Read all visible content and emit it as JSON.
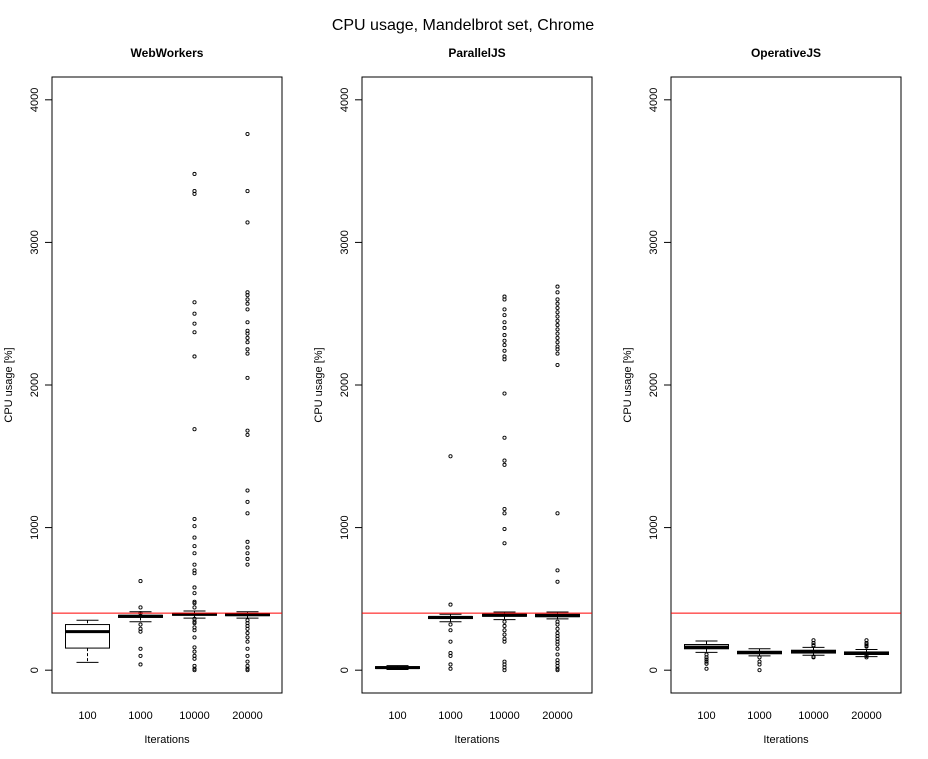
{
  "chart_data": {
    "type": "box",
    "title": "CPU usage, Mandelbrot set, Chrome",
    "reference_line": {
      "y": 400,
      "color": "#ff0000"
    },
    "panels": [
      {
        "title": "WebWorkers",
        "xlabel": "Iterations",
        "ylabel": "CPU usage [%]",
        "ylim": [
          -160,
          4160
        ],
        "yticks": [
          0,
          1000,
          2000,
          3000,
          4000
        ],
        "categories": [
          "100",
          "1000",
          "10000",
          "20000"
        ],
        "boxes": [
          {
            "whisker_low": 55,
            "q1": 155,
            "median": 270,
            "q3": 320,
            "whisker_high": 350,
            "outliers": []
          },
          {
            "whisker_low": 340,
            "q1": 370,
            "median": 378,
            "q3": 385,
            "whisker_high": 410,
            "outliers": [
              625,
              440,
              400,
              320,
              290,
              270,
              150,
              100,
              40
            ]
          },
          {
            "whisker_low": 365,
            "q1": 385,
            "median": 392,
            "q3": 398,
            "whisker_high": 415,
            "outliers": [
              3480,
              3360,
              3340,
              2580,
              2500,
              2430,
              2370,
              2200,
              1690,
              1060,
              1010,
              930,
              870,
              820,
              740,
              700,
              680,
              580,
              540,
              480,
              470,
              440,
              360,
              340,
              330,
              300,
              280,
              230,
              160,
              130,
              100,
              80,
              30,
              10,
              0
            ]
          },
          {
            "whisker_low": 365,
            "q1": 382,
            "median": 390,
            "q3": 396,
            "whisker_high": 410,
            "outliers": [
              3760,
              3360,
              3140,
              2650,
              2630,
              2600,
              2570,
              2530,
              2440,
              2380,
              2360,
              2330,
              2300,
              2250,
              2220,
              2050,
              1680,
              1650,
              1260,
              1180,
              1100,
              900,
              860,
              820,
              780,
              740,
              350,
              330,
              310,
              290,
              260,
              230,
              200,
              150,
              100,
              60,
              30,
              10,
              0
            ]
          }
        ]
      },
      {
        "title": "ParallelJS",
        "xlabel": "Iterations",
        "ylabel": "CPU usage [%]",
        "ylim": [
          -160,
          4160
        ],
        "yticks": [
          0,
          1000,
          2000,
          3000,
          4000
        ],
        "categories": [
          "100",
          "1000",
          "10000",
          "20000"
        ],
        "boxes": [
          {
            "whisker_low": 5,
            "q1": 12,
            "median": 18,
            "q3": 25,
            "whisker_high": 32,
            "outliers": []
          },
          {
            "whisker_low": 340,
            "q1": 362,
            "median": 370,
            "q3": 376,
            "whisker_high": 392,
            "outliers": [
              1500,
              460,
              320,
              280,
              200,
              120,
              100,
              40,
              10
            ]
          },
          {
            "whisker_low": 355,
            "q1": 378,
            "median": 385,
            "q3": 392,
            "whisker_high": 408,
            "outliers": [
              2620,
              2600,
              2530,
              2490,
              2440,
              2400,
              2350,
              2310,
              2280,
              2240,
              2200,
              2180,
              1940,
              1630,
              1470,
              1440,
              1130,
              1100,
              990,
              890,
              340,
              310,
              280,
              250,
              220,
              200,
              60,
              40,
              20,
              0
            ]
          },
          {
            "whisker_low": 360,
            "q1": 375,
            "median": 383,
            "q3": 392,
            "whisker_high": 408,
            "outliers": [
              2690,
              2650,
              2600,
              2570,
              2540,
              2510,
              2480,
              2450,
              2420,
              2390,
              2360,
              2330,
              2300,
              2270,
              2250,
              2220,
              2140,
              1100,
              700,
              620,
              340,
              320,
              290,
              260,
              240,
              220,
              200,
              180,
              150,
              110,
              70,
              50,
              30,
              10,
              0
            ]
          }
        ]
      },
      {
        "title": "OperativeJS",
        "xlabel": "Iterations",
        "ylabel": "CPU usage [%]",
        "ylim": [
          -160,
          4160
        ],
        "yticks": [
          0,
          1000,
          2000,
          3000,
          4000
        ],
        "categories": [
          "100",
          "1000",
          "10000",
          "20000"
        ],
        "boxes": [
          {
            "whisker_low": 125,
            "q1": 150,
            "median": 162,
            "q3": 180,
            "whisker_high": 205,
            "outliers": [
              110,
              90,
              75,
              60,
              45,
              10
            ]
          },
          {
            "whisker_low": 100,
            "q1": 115,
            "median": 125,
            "q3": 132,
            "whisker_high": 150,
            "outliers": [
              90,
              60,
              40,
              0
            ]
          },
          {
            "whisker_low": 105,
            "q1": 120,
            "median": 130,
            "q3": 140,
            "whisker_high": 160,
            "outliers": [
              210,
              190,
              175,
              170,
              95,
              90
            ]
          },
          {
            "whisker_low": 95,
            "q1": 110,
            "median": 118,
            "q3": 128,
            "whisker_high": 145,
            "outliers": [
              210,
              190,
              180,
              170,
              165,
              100,
              90
            ]
          }
        ]
      }
    ]
  }
}
